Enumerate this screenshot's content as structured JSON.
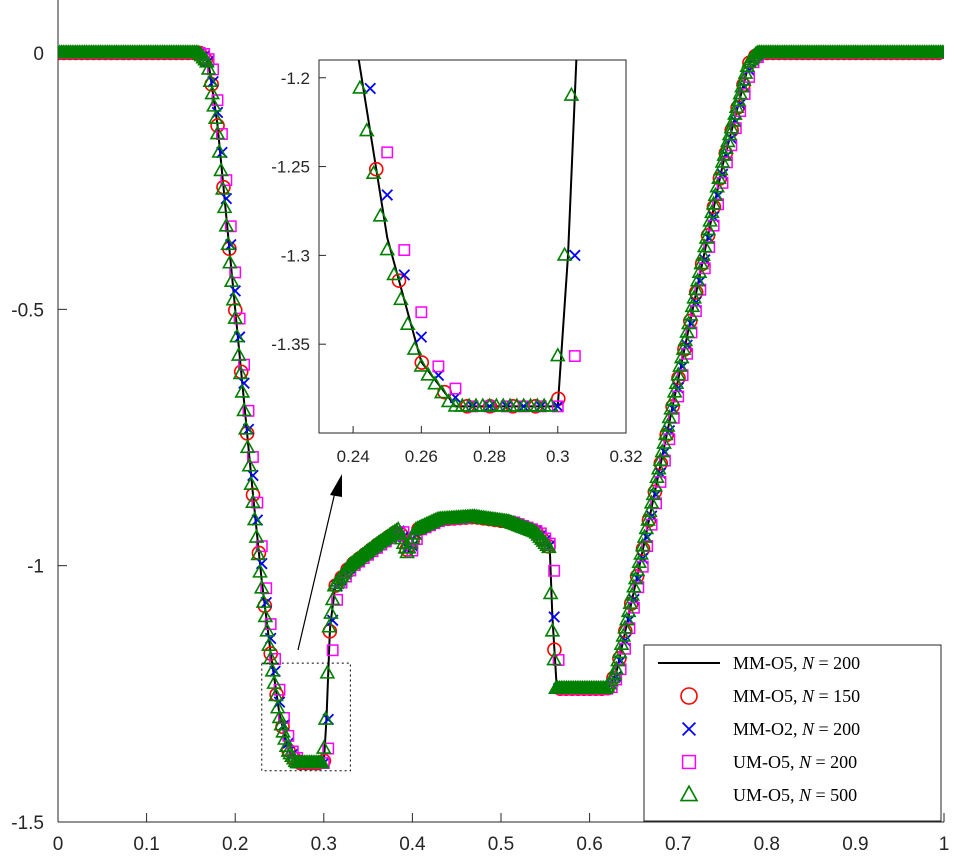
{
  "chart_data": {
    "type": "line",
    "title": "",
    "xlabel": "",
    "ylabel": "",
    "xlim": [
      0,
      1
    ],
    "ylim": [
      -1.5,
      0
    ],
    "x_ticks": [
      "0",
      "0.1",
      "0.2",
      "0.3",
      "0.4",
      "0.5",
      "0.6",
      "0.7",
      "0.8",
      "0.9",
      "1"
    ],
    "y_ticks": [
      "0",
      "-0.5",
      "-1",
      "-1.5"
    ],
    "grid": false,
    "legend_position": "bottom-right",
    "profile": [
      [
        0.0,
        0.0
      ],
      [
        0.16,
        0.0
      ],
      [
        0.17,
        -0.02
      ],
      [
        0.18,
        -0.14
      ],
      [
        0.19,
        -0.32
      ],
      [
        0.2,
        -0.5
      ],
      [
        0.21,
        -0.68
      ],
      [
        0.22,
        -0.86
      ],
      [
        0.23,
        -1.03
      ],
      [
        0.24,
        -1.17
      ],
      [
        0.25,
        -1.29
      ],
      [
        0.26,
        -1.36
      ],
      [
        0.27,
        -1.385
      ],
      [
        0.3,
        -1.385
      ],
      [
        0.303,
        -1.3
      ],
      [
        0.307,
        -1.12
      ],
      [
        0.313,
        -1.04
      ],
      [
        0.33,
        -1.0
      ],
      [
        0.36,
        -0.96
      ],
      [
        0.385,
        -0.93
      ],
      [
        0.395,
        -0.975
      ],
      [
        0.405,
        -0.93
      ],
      [
        0.43,
        -0.91
      ],
      [
        0.47,
        -0.905
      ],
      [
        0.51,
        -0.915
      ],
      [
        0.54,
        -0.935
      ],
      [
        0.555,
        -0.965
      ],
      [
        0.558,
        -1.1
      ],
      [
        0.563,
        -1.24
      ],
      [
        0.62,
        -1.24
      ],
      [
        0.63,
        -1.21
      ],
      [
        0.66,
        -0.97
      ],
      [
        0.69,
        -0.72
      ],
      [
        0.72,
        -0.47
      ],
      [
        0.75,
        -0.22
      ],
      [
        0.78,
        -0.02
      ],
      [
        0.79,
        0.0
      ],
      [
        1.0,
        0.0
      ]
    ],
    "series": [
      {
        "name": "MM-O5, N = 200",
        "marker": "line",
        "color": "#000000",
        "shift": 0.0,
        "step": 0
      },
      {
        "name": "MM-O5, N = 150",
        "marker": "circle",
        "color": "#ff0000",
        "shift": 0.0,
        "step": 0.00667
      },
      {
        "name": "MM-O2, N = 200",
        "marker": "x",
        "color": "#0000ff",
        "shift": 0.002,
        "step": 0.005
      },
      {
        "name": "UM-O5, N = 200",
        "marker": "square",
        "color": "#ff00ff",
        "shift": 0.004,
        "step": 0.005
      },
      {
        "name": "UM-O5, N = 500",
        "marker": "triangle",
        "color": "#008000",
        "shift": -0.001,
        "step": 0.002
      }
    ],
    "legend_entries": [
      "MM-O5, ",
      "MM-O5, ",
      "MM-O2, ",
      "UM-O5, ",
      "UM-O5, "
    ],
    "legend_n_values": [
      "200",
      "150",
      "200",
      "200",
      "500"
    ],
    "legend_n_symbol": "N",
    "legend_equals": " = ",
    "inset": {
      "xlim": [
        0.23,
        0.32
      ],
      "ylim": [
        -1.4,
        -1.19
      ],
      "x_ticks": [
        "0.24",
        "0.26",
        "0.28",
        "0.3",
        "0.32"
      ],
      "y_ticks": [
        "-1.2",
        "-1.25",
        "-1.3",
        "-1.35"
      ],
      "zoom_box": {
        "x": [
          0.23,
          0.33
        ],
        "y": [
          -1.4,
          -1.19
        ]
      }
    }
  }
}
